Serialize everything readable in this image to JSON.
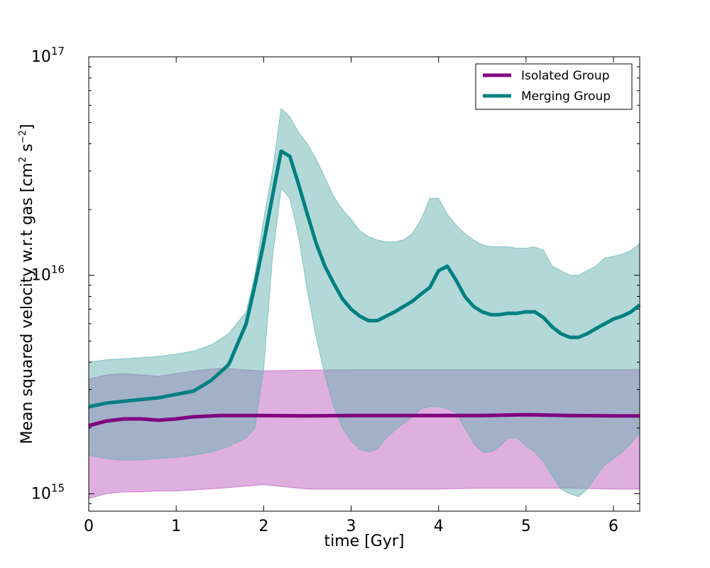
{
  "chart_data": {
    "type": "line",
    "xlabel": "time [Gyr]",
    "ylabel_main": "Mean squared velocity w.r.t gas [cm",
    "ylabel_unit_s": " s",
    "ylabel_sup_cm": "2",
    "ylabel_sup_s": "−2",
    "ylabel_close": "]",
    "yscale": "log",
    "xlim": [
      0,
      6.3
    ],
    "ylim_log10": [
      14.92,
      17
    ],
    "xticks": [
      0,
      1,
      2,
      3,
      4,
      5,
      6
    ],
    "xtick_labels": [
      "0",
      "1",
      "2",
      "3",
      "4",
      "5",
      "6"
    ],
    "ytick_exponents": [
      15,
      16,
      17
    ],
    "ytick_base": "10",
    "legend_position": "top-right",
    "series": [
      {
        "name": "Isolated Group",
        "color": "#800080",
        "band_color": "#bf5fbf",
        "x": [
          0,
          0.2,
          0.4,
          0.6,
          0.8,
          1.0,
          1.2,
          1.5,
          2.0,
          2.5,
          3.0,
          3.5,
          4.0,
          4.5,
          5.0,
          5.5,
          6.0,
          6.3
        ],
        "mean": [
          2050000000000000.0,
          2150000000000000.0,
          2200000000000000.0,
          2200000000000000.0,
          2170000000000000.0,
          2200000000000000.0,
          2250000000000000.0,
          2280000000000000.0,
          2280000000000000.0,
          2270000000000000.0,
          2280000000000000.0,
          2280000000000000.0,
          2280000000000000.0,
          2280000000000000.0,
          2300000000000000.0,
          2280000000000000.0,
          2270000000000000.0,
          2270000000000000.0
        ],
        "lower": [
          950000000000000.0,
          1000000000000000.0,
          1020000000000000.0,
          1020000000000000.0,
          1030000000000000.0,
          1030000000000000.0,
          1040000000000000.0,
          1060000000000000.0,
          1100000000000000.0,
          1050000000000000.0,
          1050000000000000.0,
          1050000000000000.0,
          1050000000000000.0,
          1060000000000000.0,
          1060000000000000.0,
          1060000000000000.0,
          1050000000000000.0,
          1050000000000000.0
        ],
        "upper": [
          3350000000000000.0,
          3500000000000000.0,
          3550000000000000.0,
          3500000000000000.0,
          3450000000000000.0,
          3550000000000000.0,
          3650000000000000.0,
          3750000000000000.0,
          3650000000000000.0,
          3680000000000000.0,
          3700000000000000.0,
          3700000000000000.0,
          3700000000000000.0,
          3700000000000000.0,
          3700000000000000.0,
          3700000000000000.0,
          3700000000000000.0,
          3700000000000000.0
        ]
      },
      {
        "name": "Merging Group",
        "color": "#008080",
        "band_color": "#66b2b2",
        "x": [
          0,
          0.2,
          0.4,
          0.6,
          0.8,
          1.0,
          1.2,
          1.4,
          1.6,
          1.8,
          1.9,
          2.0,
          2.1,
          2.2,
          2.3,
          2.4,
          2.5,
          2.6,
          2.7,
          2.8,
          2.9,
          3.0,
          3.1,
          3.2,
          3.3,
          3.4,
          3.5,
          3.6,
          3.7,
          3.8,
          3.9,
          4.0,
          4.1,
          4.2,
          4.3,
          4.4,
          4.5,
          4.6,
          4.7,
          4.8,
          4.9,
          5.0,
          5.1,
          5.2,
          5.3,
          5.4,
          5.5,
          5.6,
          5.7,
          5.8,
          5.9,
          6.0,
          6.1,
          6.2,
          6.3
        ],
        "mean": [
          2500000000000000.0,
          2600000000000000.0,
          2650000000000000.0,
          2700000000000000.0,
          2750000000000000.0,
          2850000000000000.0,
          2950000000000000.0,
          3300000000000000.0,
          3900000000000000.0,
          6000000000000000.0,
          9000000000000000.0,
          1.4e+16,
          2.3e+16,
          3.7e+16,
          3.5e+16,
          2.6e+16,
          1.9e+16,
          1.4e+16,
          1.1e+16,
          9200000000000000.0,
          7800000000000000.0,
          7000000000000000.0,
          6500000000000000.0,
          6200000000000000.0,
          6200000000000000.0,
          6500000000000000.0,
          6800000000000000.0,
          7200000000000000.0,
          7600000000000000.0,
          8200000000000000.0,
          8800000000000000.0,
          1.05e+16,
          1.1e+16,
          9500000000000000.0,
          8000000000000000.0,
          7200000000000000.0,
          6800000000000000.0,
          6600000000000000.0,
          6600000000000000.0,
          6700000000000000.0,
          6700000000000000.0,
          6800000000000000.0,
          6800000000000000.0,
          6400000000000000.0,
          5800000000000000.0,
          5400000000000000.0,
          5200000000000000.0,
          5200000000000000.0,
          5400000000000000.0,
          5700000000000000.0,
          6000000000000000.0,
          6300000000000000.0,
          6500000000000000.0,
          6800000000000000.0,
          7300000000000000.0
        ],
        "lower": [
          1500000000000000.0,
          1450000000000000.0,
          1420000000000000.0,
          1430000000000000.0,
          1450000000000000.0,
          1470000000000000.0,
          1500000000000000.0,
          1550000000000000.0,
          1650000000000000.0,
          1800000000000000.0,
          2000000000000000.0,
          3700000000000000.0,
          1.2e+16,
          2.5e+16,
          2.25e+16,
          1.5e+16,
          8500000000000000.0,
          5200000000000000.0,
          3500000000000000.0,
          2500000000000000.0,
          2000000000000000.0,
          1750000000000000.0,
          1600000000000000.0,
          1550000000000000.0,
          1600000000000000.0,
          1800000000000000.0,
          1950000000000000.0,
          2100000000000000.0,
          2250000000000000.0,
          2450000000000000.0,
          2500000000000000.0,
          2500000000000000.0,
          2450000000000000.0,
          2350000000000000.0,
          2000000000000000.0,
          1700000000000000.0,
          1550000000000000.0,
          1550000000000000.0,
          1650000000000000.0,
          1800000000000000.0,
          1800000000000000.0,
          1650000000000000.0,
          1550000000000000.0,
          1400000000000000.0,
          1200000000000000.0,
          1050000000000000.0,
          1000000000000000.0,
          970000000000000.0,
          1050000000000000.0,
          1200000000000000.0,
          1350000000000000.0,
          1450000000000000.0,
          1550000000000000.0,
          1700000000000000.0,
          1900000000000000.0
        ],
        "upper": [
          4000000000000000.0,
          4100000000000000.0,
          4150000000000000.0,
          4200000000000000.0,
          4250000000000000.0,
          4350000000000000.0,
          4500000000000000.0,
          4800000000000000.0,
          5400000000000000.0,
          6800000000000000.0,
          1e+16,
          1.8e+16,
          3e+16,
          5.8e+16,
          5.3e+16,
          4.5e+16,
          4e+16,
          3.4e+16,
          2.8e+16,
          2.3e+16,
          2e+16,
          1.8e+16,
          1.6e+16,
          1.5e+16,
          1.45e+16,
          1.42e+16,
          1.42e+16,
          1.45e+16,
          1.55e+16,
          1.8e+16,
          2.25e+16,
          2.25e+16,
          1.9e+16,
          1.7e+16,
          1.55e+16,
          1.45e+16,
          1.38e+16,
          1.35e+16,
          1.35e+16,
          1.35e+16,
          1.33e+16,
          1.33e+16,
          1.35e+16,
          1.3e+16,
          1.1e+16,
          1.05e+16,
          1e+16,
          1e+16,
          1.05e+16,
          1.1e+16,
          1.2e+16,
          1.22e+16,
          1.25e+16,
          1.3e+16,
          1.4e+16
        ]
      }
    ]
  }
}
